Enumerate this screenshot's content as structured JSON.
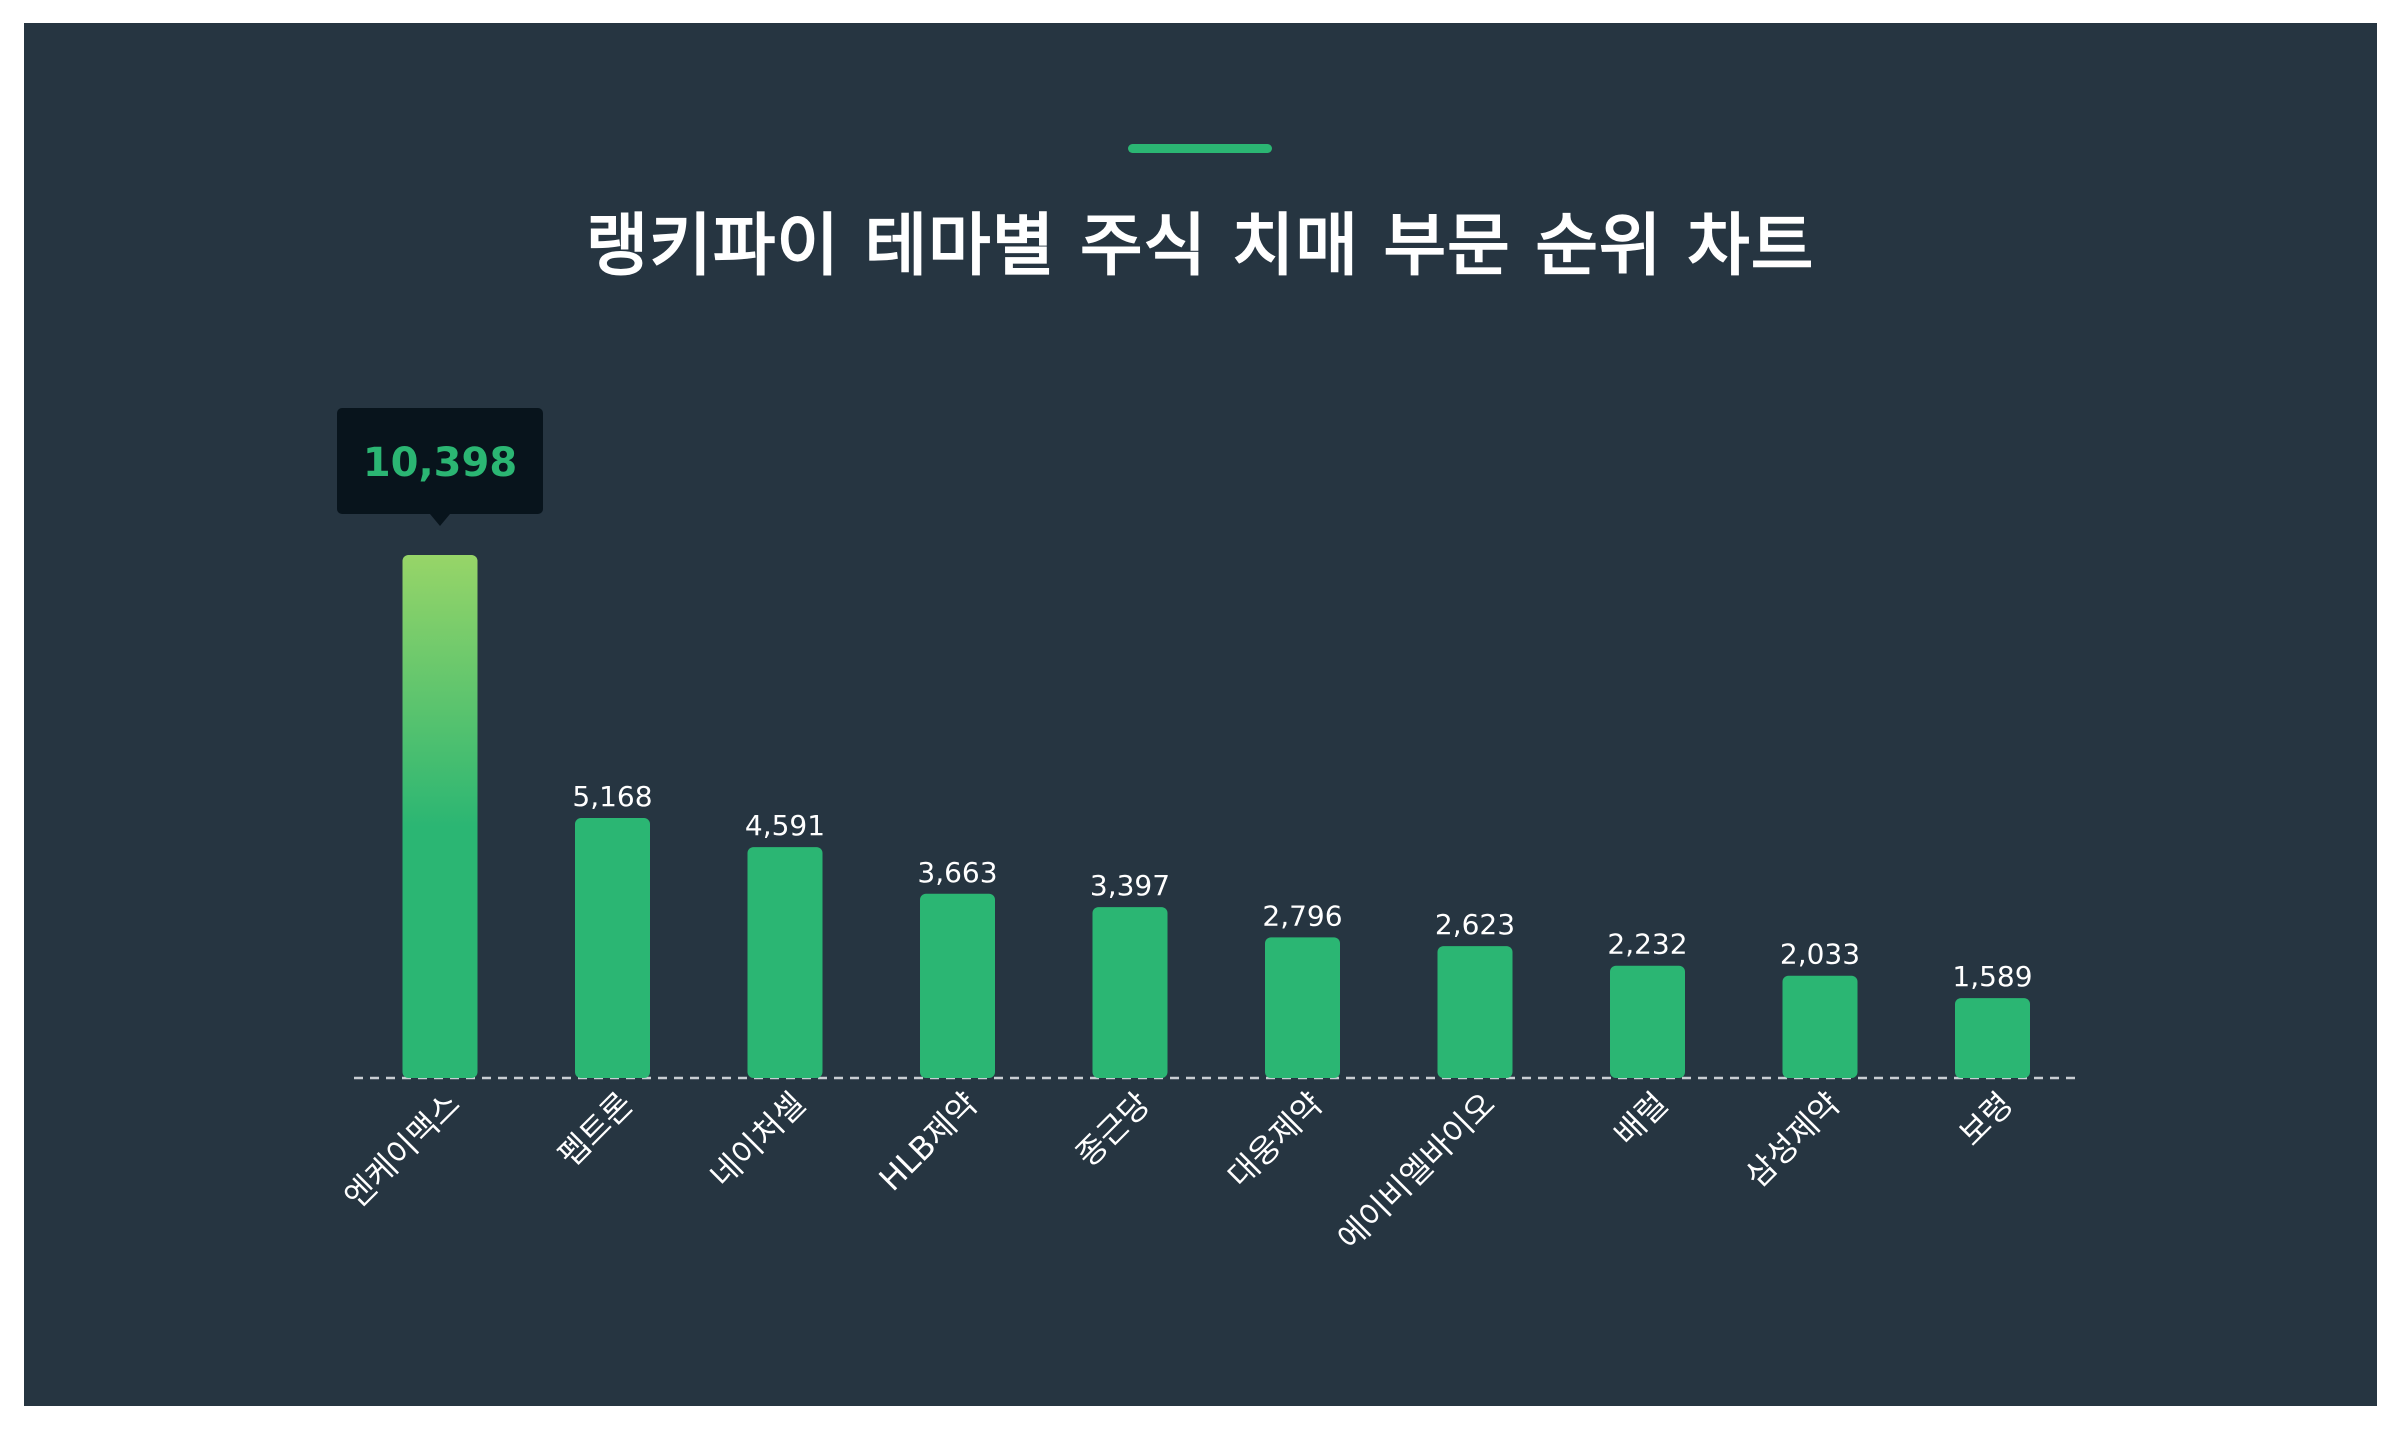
{
  "title": "랭키파이 테마별 주식 치매 부문 순위 차트",
  "colors": {
    "background": "#263541",
    "bar": "#2bb673",
    "bar_top_highlight": "#97d568",
    "tooltip_bg": "#08141c",
    "tooltip_text": "#2bb673",
    "label_text": "#ffffff",
    "baseline": "#c9ced3"
  },
  "chart_data": {
    "type": "bar",
    "title": "랭키파이 테마별 주식 치매 부문 순위 차트",
    "xlabel": "",
    "ylabel": "",
    "categories": [
      "엔케이맥스",
      "펩트론",
      "네이처셀",
      "HLB제약",
      "종근당",
      "대웅제약",
      "에이비엘바이오",
      "배럴",
      "삼성제약",
      "보령"
    ],
    "values": [
      10398,
      5168,
      4591,
      3663,
      3397,
      2796,
      2623,
      2232,
      2033,
      1589
    ],
    "value_labels": [
      "10,398",
      "5,168",
      "4,591",
      "3,663",
      "3,397",
      "2,796",
      "2,623",
      "2,232",
      "2,033",
      "1,589"
    ],
    "highlighted_index": 0,
    "ylim": [
      0,
      10398
    ],
    "grid": false,
    "legend": "none"
  }
}
